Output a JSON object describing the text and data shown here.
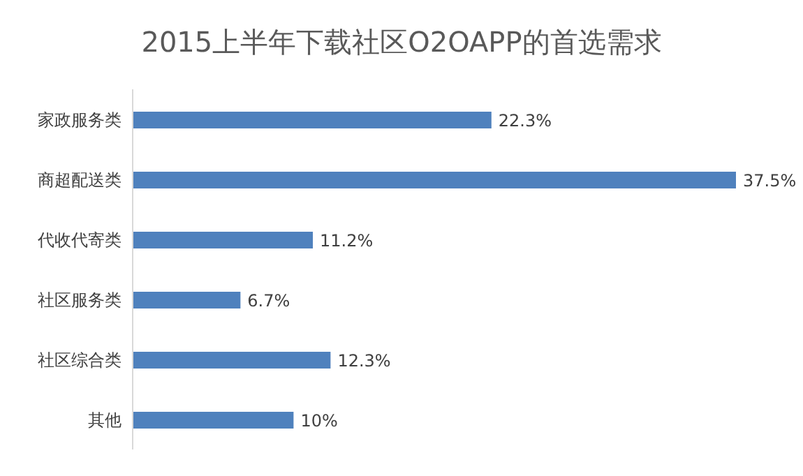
{
  "chart_data": {
    "type": "bar",
    "orientation": "horizontal",
    "title": "2015上半年下载社区O2OAPP的首选需求",
    "categories": [
      "家政服务类",
      "商超配送类",
      "代收代寄类",
      "社区服务类",
      "社区综合类",
      "其他"
    ],
    "values": [
      22.3,
      37.5,
      11.2,
      6.7,
      12.3,
      10
    ],
    "value_labels": [
      "22.3%",
      "37.5%",
      "11.2%",
      "6.7%",
      "12.3%",
      "10%"
    ],
    "color": "#4f81bd"
  }
}
